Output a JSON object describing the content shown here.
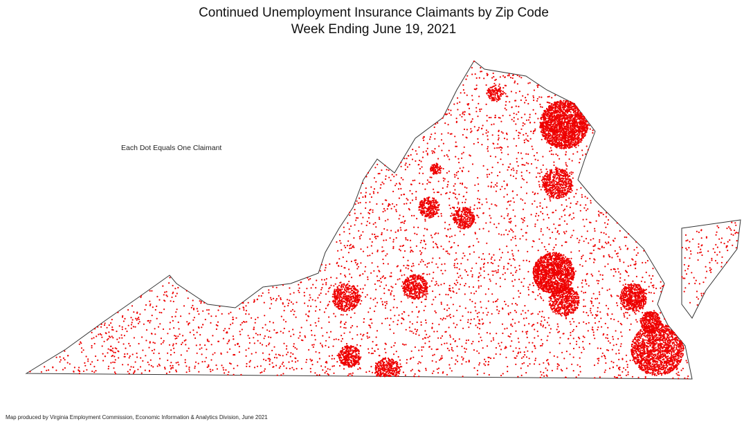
{
  "header": {
    "title": "Continued Unemployment Insurance Claimants by Zip Code",
    "subtitle": "Week Ending June 19, 2021"
  },
  "legend": {
    "note": "Each Dot Equals One Claimant"
  },
  "footer": {
    "credit": "Map produced by Virginia Employment Commission, Economic Information & Analytics Division,  June 2021"
  }
}
